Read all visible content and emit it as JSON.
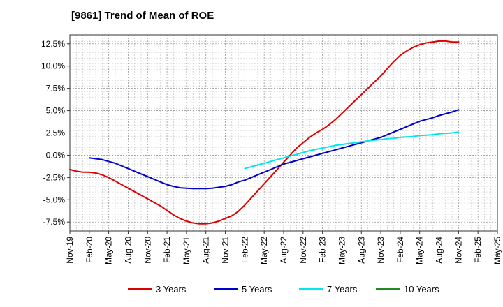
{
  "chart_data": {
    "type": "line",
    "title": "[9861]  Trend of Mean of ROE",
    "xlabel": "",
    "ylabel": "",
    "x_ticks": [
      "Nov-19",
      "Feb-20",
      "May-20",
      "Aug-20",
      "Nov-20",
      "Feb-21",
      "May-21",
      "Aug-21",
      "Nov-21",
      "Feb-22",
      "May-22",
      "Aug-22",
      "Nov-22",
      "Feb-23",
      "May-23",
      "Aug-23",
      "Nov-23",
      "Feb-24",
      "May-24",
      "Aug-24",
      "Nov-24",
      "Feb-25",
      "May-25"
    ],
    "y_ticks": [
      "12.5%",
      "10.0%",
      "7.5%",
      "5.0%",
      "2.5%",
      "0.0%",
      "-2.5%",
      "-5.0%",
      "-7.5%"
    ],
    "y_tick_values": [
      12.5,
      10.0,
      7.5,
      5.0,
      2.5,
      0.0,
      -2.5,
      -5.0,
      -7.5
    ],
    "ylim": [
      -8.5,
      13.5
    ],
    "xlim": [
      0,
      66
    ],
    "grid": true,
    "legend_position": "bottom",
    "series": [
      {
        "name": "3 Years",
        "color": "#dd0000",
        "x": [
          0,
          1,
          2,
          3,
          4,
          5,
          6,
          7,
          8,
          9,
          10,
          11,
          12,
          13,
          14,
          15,
          16,
          17,
          18,
          19,
          20,
          21,
          22,
          23,
          24,
          25,
          26,
          27,
          28,
          29,
          30,
          31,
          32,
          33,
          34,
          35,
          36,
          37,
          38,
          39,
          40,
          41,
          42,
          43,
          44,
          45,
          46,
          47,
          48,
          49,
          50,
          51,
          52,
          53,
          54,
          55,
          56,
          57,
          58,
          59,
          60
        ],
        "values": [
          -1.6,
          -1.8,
          -1.9,
          -1.9,
          -2.0,
          -2.2,
          -2.5,
          -2.9,
          -3.3,
          -3.7,
          -4.1,
          -4.5,
          -4.9,
          -5.3,
          -5.7,
          -6.2,
          -6.7,
          -7.1,
          -7.4,
          -7.6,
          -7.7,
          -7.7,
          -7.6,
          -7.4,
          -7.1,
          -6.8,
          -6.3,
          -5.6,
          -4.8,
          -4.0,
          -3.2,
          -2.4,
          -1.6,
          -0.8,
          0.0,
          0.8,
          1.4,
          2.0,
          2.5,
          2.9,
          3.4,
          4.0,
          4.7,
          5.4,
          6.1,
          6.8,
          7.5,
          8.2,
          8.9,
          9.7,
          10.5,
          11.2,
          11.7,
          12.1,
          12.4,
          12.6,
          12.7,
          12.8,
          12.8,
          12.7,
          12.7
        ]
      },
      {
        "name": "5 Years",
        "color": "#0000cc",
        "x": [
          3,
          4,
          5,
          6,
          7,
          8,
          9,
          10,
          11,
          12,
          13,
          14,
          15,
          16,
          17,
          18,
          19,
          20,
          21,
          22,
          23,
          24,
          25,
          26,
          27,
          28,
          29,
          30,
          31,
          32,
          33,
          34,
          35,
          36,
          37,
          38,
          39,
          40,
          41,
          42,
          43,
          44,
          45,
          46,
          47,
          48,
          49,
          50,
          51,
          52,
          53,
          54,
          55,
          56,
          57,
          58,
          59,
          60
        ],
        "values": [
          -0.3,
          -0.4,
          -0.5,
          -0.7,
          -0.9,
          -1.2,
          -1.5,
          -1.8,
          -2.1,
          -2.4,
          -2.7,
          -3.0,
          -3.3,
          -3.5,
          -3.65,
          -3.7,
          -3.75,
          -3.75,
          -3.75,
          -3.7,
          -3.6,
          -3.5,
          -3.3,
          -3.0,
          -2.8,
          -2.5,
          -2.2,
          -1.9,
          -1.6,
          -1.3,
          -1.0,
          -0.8,
          -0.6,
          -0.4,
          -0.2,
          0.0,
          0.2,
          0.4,
          0.6,
          0.8,
          1.0,
          1.2,
          1.4,
          1.6,
          1.8,
          2.0,
          2.3,
          2.6,
          2.9,
          3.2,
          3.5,
          3.8,
          4.0,
          4.2,
          4.45,
          4.65,
          4.85,
          5.1
        ]
      },
      {
        "name": "7 Years",
        "color": "#00e5ee",
        "x": [
          27,
          28,
          29,
          30,
          31,
          32,
          33,
          34,
          35,
          36,
          37,
          38,
          39,
          40,
          41,
          42,
          43,
          44,
          45,
          46,
          47,
          48,
          49,
          50,
          51,
          52,
          53,
          54,
          55,
          56,
          57,
          58,
          59,
          60
        ],
        "values": [
          -1.5,
          -1.3,
          -1.1,
          -0.9,
          -0.7,
          -0.5,
          -0.3,
          -0.1,
          0.1,
          0.3,
          0.5,
          0.65,
          0.8,
          0.95,
          1.1,
          1.2,
          1.3,
          1.4,
          1.5,
          1.6,
          1.7,
          1.75,
          1.85,
          1.9,
          2.0,
          2.05,
          2.1,
          2.2,
          2.25,
          2.3,
          2.4,
          2.45,
          2.5,
          2.6
        ]
      },
      {
        "name": "10 Years",
        "color": "#228b22",
        "x": [],
        "values": []
      }
    ]
  }
}
